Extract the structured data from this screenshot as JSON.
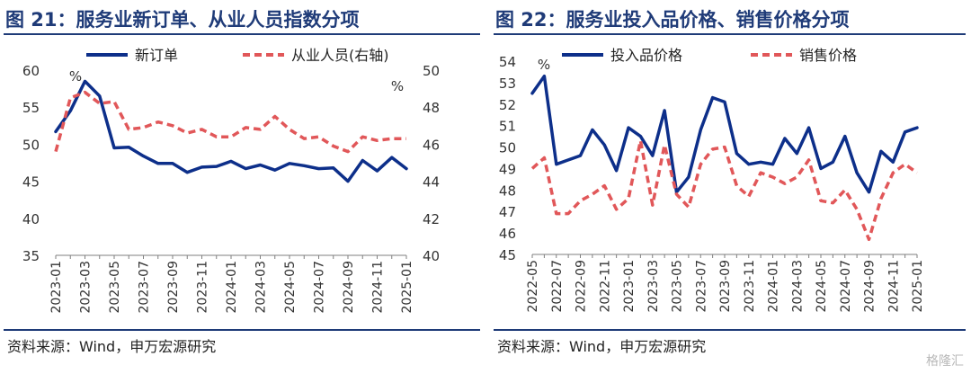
{
  "panels": [
    {
      "title": "图 21：服务业新订单、从业人员指数分项",
      "source": "资料来源：Wind，申万宏源研究",
      "left_unit": "%",
      "right_unit": "%"
    },
    {
      "title": "图 22：服务业投入品价格、销售价格分项",
      "source": "资料来源：Wind，申万宏源研究",
      "left_unit": "%"
    }
  ],
  "watermark": "格隆汇",
  "chart_data": [
    {
      "type": "line",
      "title": "图 21：服务业新订单、从业人员指数分项",
      "x": [
        "2023-01",
        "2023-02",
        "2023-03",
        "2023-04",
        "2023-05",
        "2023-06",
        "2023-07",
        "2023-08",
        "2023-09",
        "2023-10",
        "2023-11",
        "2023-12",
        "2024-01",
        "2024-02",
        "2024-03",
        "2024-04",
        "2024-05",
        "2024-06",
        "2024-07",
        "2024-08",
        "2024-09",
        "2024-10",
        "2024-11",
        "2024-12",
        "2025-01"
      ],
      "x_tick_labels": [
        "2023-01",
        "2023-03",
        "2023-05",
        "2023-07",
        "2023-09",
        "2023-11",
        "2024-01",
        "2024-03",
        "2024-05",
        "2024-07",
        "2024-09",
        "2024-11",
        "2025-01"
      ],
      "y_left": {
        "ylim": [
          35,
          60
        ],
        "ticks": [
          35,
          40,
          45,
          50,
          55,
          60
        ]
      },
      "y_right": {
        "ylim": [
          40,
          50
        ],
        "ticks": [
          40,
          42,
          44,
          46,
          48,
          50
        ]
      },
      "grid": false,
      "legend": "top",
      "series": [
        {
          "name": "新订单",
          "axis": "left",
          "style": "solid",
          "color": "#0d2f8a",
          "values": [
            51.7,
            54.5,
            58.5,
            56.5,
            49.5,
            49.6,
            48.4,
            47.4,
            47.4,
            46.2,
            46.9,
            47.0,
            47.7,
            46.7,
            47.2,
            46.5,
            47.4,
            47.1,
            46.7,
            46.8,
            45.0,
            47.8,
            46.4,
            48.2,
            46.7
          ]
        },
        {
          "name": "从业人员(右轴)",
          "axis": "right",
          "style": "dashed",
          "color": "#e15759",
          "values": [
            45.6,
            48.5,
            48.8,
            48.2,
            48.3,
            46.8,
            46.9,
            47.2,
            47.0,
            46.6,
            46.8,
            46.4,
            46.4,
            46.9,
            46.8,
            47.5,
            46.8,
            46.3,
            46.4,
            45.9,
            45.6,
            46.4,
            46.2,
            46.3,
            46.3
          ]
        }
      ]
    },
    {
      "type": "line",
      "title": "图 22：服务业投入品价格、销售价格分项",
      "x": [
        "2022-05",
        "2022-06",
        "2022-07",
        "2022-08",
        "2022-09",
        "2022-10",
        "2022-11",
        "2022-12",
        "2023-01",
        "2023-02",
        "2023-03",
        "2023-04",
        "2023-05",
        "2023-06",
        "2023-07",
        "2023-08",
        "2023-09",
        "2023-10",
        "2023-11",
        "2023-12",
        "2024-01",
        "2024-02",
        "2024-03",
        "2024-04",
        "2024-05",
        "2024-06",
        "2024-07",
        "2024-08",
        "2024-09",
        "2024-10",
        "2024-11",
        "2024-12",
        "2025-01"
      ],
      "x_tick_labels": [
        "2022-05",
        "2022-07",
        "2022-09",
        "2022-11",
        "2023-01",
        "2023-03",
        "2023-05",
        "2023-07",
        "2023-09",
        "2023-11",
        "2024-01",
        "2024-03",
        "2024-05",
        "2024-07",
        "2024-09",
        "2024-11",
        "2025-01"
      ],
      "y_left": {
        "ylim": [
          45,
          54
        ],
        "ticks": [
          45,
          46,
          47,
          48,
          49,
          50,
          51,
          52,
          53,
          54
        ]
      },
      "grid": false,
      "legend": "top",
      "series": [
        {
          "name": "投入品价格",
          "axis": "left",
          "style": "solid",
          "color": "#0d2f8a",
          "values": [
            52.5,
            53.3,
            49.2,
            49.4,
            49.6,
            50.8,
            50.1,
            48.9,
            50.9,
            50.5,
            49.6,
            51.7,
            47.9,
            48.6,
            50.8,
            52.3,
            52.1,
            49.7,
            49.2,
            49.3,
            49.2,
            50.4,
            49.7,
            50.9,
            49.0,
            49.3,
            50.5,
            48.8,
            47.9,
            49.8,
            49.3,
            50.7,
            50.9
          ]
        },
        {
          "name": "销售价格",
          "axis": "left",
          "style": "dashed",
          "color": "#e15759",
          "values": [
            49.0,
            49.5,
            46.9,
            46.9,
            47.5,
            47.8,
            48.2,
            47.1,
            47.6,
            50.3,
            47.3,
            50.1,
            47.8,
            47.2,
            49.2,
            49.9,
            50.0,
            48.2,
            47.7,
            48.8,
            48.6,
            48.3,
            48.6,
            49.4,
            47.5,
            47.4,
            48.0,
            47.1,
            45.7,
            47.6,
            48.8,
            49.2,
            48.8
          ]
        }
      ]
    }
  ]
}
